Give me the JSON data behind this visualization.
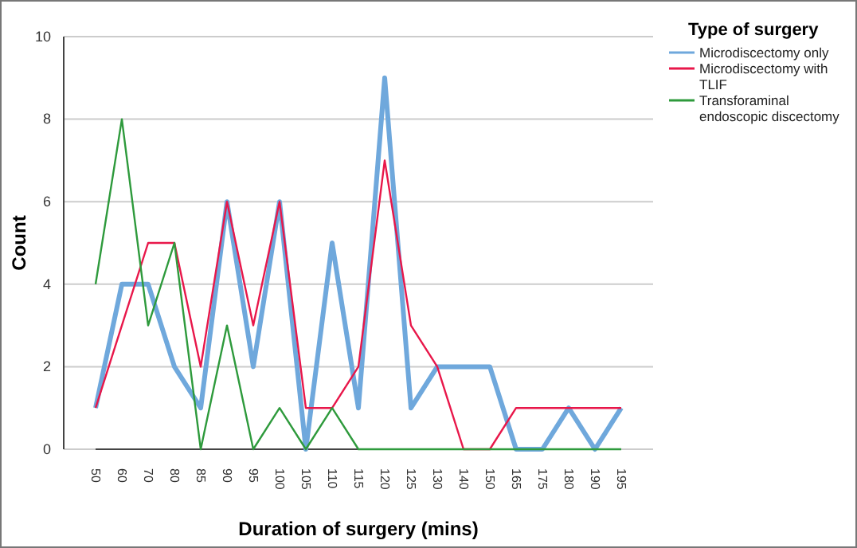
{
  "chart_data": {
    "type": "line",
    "xlabel": "Duration of surgery (mins)",
    "ylabel": "Count",
    "legend_title": "Type of surgery",
    "legend": "top right",
    "grid": "y",
    "categories": [
      "50",
      "60",
      "70",
      "80",
      "85",
      "90",
      "95",
      "100",
      "105",
      "110",
      "115",
      "120",
      "125",
      "130",
      "140",
      "150",
      "165",
      "175",
      "180",
      "190",
      "195"
    ],
    "ylim": [
      0,
      10
    ],
    "yticks": [
      0,
      2,
      4,
      6,
      8,
      10
    ],
    "series": [
      {
        "name": "Microdiscectomy only",
        "color": "#6fa8dc",
        "values": [
          1,
          4,
          4,
          2,
          1,
          6,
          2,
          6,
          0,
          5,
          1,
          9,
          1,
          2,
          2,
          2,
          0,
          0,
          1,
          0,
          1
        ]
      },
      {
        "name": "Microdiscectomy with TLIF",
        "color": "#e8174a",
        "values": [
          1,
          3,
          5,
          5,
          2,
          6,
          3,
          6,
          1,
          1,
          2,
          7,
          3,
          2,
          0,
          0,
          1,
          1,
          1,
          1,
          1
        ]
      },
      {
        "name": "Transforaminal endoscopic discectomy",
        "color": "#2e9a3c",
        "values": [
          4,
          8,
          3,
          5,
          0,
          3,
          0,
          1,
          0,
          1,
          0,
          0,
          0,
          0,
          0,
          0,
          0,
          0,
          0,
          0,
          0
        ]
      }
    ]
  }
}
